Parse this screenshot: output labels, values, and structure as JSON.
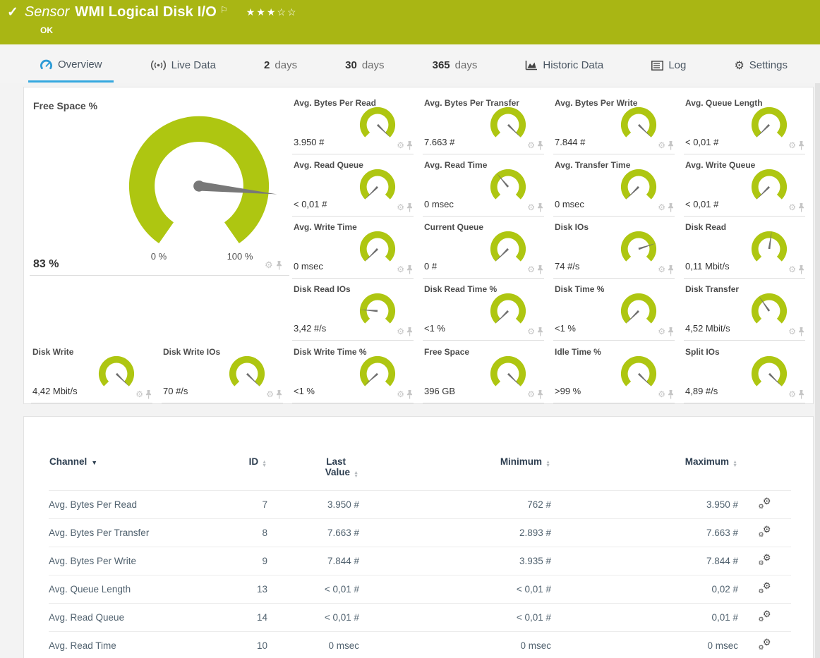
{
  "colors": {
    "header_green": "#a9b614",
    "gauge_green": "#aec611",
    "accent_blue": "#35a8df",
    "needle_gray": "#6f6f6f",
    "table_header_navy": "#2d3e50"
  },
  "header": {
    "check_icon": "✓",
    "sensor_label": "Sensor",
    "title": "WMI Logical Disk I/O",
    "flag_icon": "⚐",
    "stars": "★★★☆☆",
    "status": "OK"
  },
  "tabs": [
    {
      "label": "Overview",
      "icon": "gauge-icon",
      "active": true
    },
    {
      "label": "Live Data",
      "icon": "live-data-icon"
    },
    {
      "num": "2",
      "label": "days"
    },
    {
      "num": "30",
      "label": "days"
    },
    {
      "num": "365",
      "label": "days"
    },
    {
      "label": "Historic Data",
      "icon": "historic-data-icon"
    },
    {
      "label": "Log",
      "icon": "log-icon"
    },
    {
      "label": "Settings",
      "icon": "settings-icon"
    }
  ],
  "big_gauge": {
    "title": "Free Space %",
    "value": "83 %",
    "min_label": "0 %",
    "max_label": "100 %",
    "needle_deg": 96
  },
  "gauges": {
    "grid": [
      {
        "title": "Avg. Bytes Per Read",
        "value": "3.950 #",
        "needle_deg": 135
      },
      {
        "title": "Avg. Bytes Per Transfer",
        "value": "7.663 #",
        "needle_deg": 135
      },
      {
        "title": "Avg. Bytes Per Write",
        "value": "7.844 #",
        "needle_deg": 135
      },
      {
        "title": "Avg. Queue Length",
        "value": "< 0,01 #",
        "needle_deg": -135
      },
      {
        "title": "Avg. Read Queue",
        "value": "< 0,01 #",
        "needle_deg": -135
      },
      {
        "title": "Avg. Read Time",
        "value": "0 msec",
        "needle_deg": -40
      },
      {
        "title": "Avg. Transfer Time",
        "value": "0 msec",
        "needle_deg": -135
      },
      {
        "title": "Avg. Write Queue",
        "value": "< 0,01 #",
        "needle_deg": -135
      },
      {
        "title": "Avg. Write Time",
        "value": "0 msec",
        "needle_deg": -135
      },
      {
        "title": "Current Queue",
        "value": "0 #",
        "needle_deg": -135
      },
      {
        "title": "Disk IOs",
        "value": "74 #/s",
        "needle_deg": 72
      },
      {
        "title": "Disk Read",
        "value": "0,11 Mbit/s",
        "needle_deg": 8
      },
      {
        "title": "Disk Read IOs",
        "value": "3,42 #/s",
        "needle_deg": -86
      },
      {
        "title": "Disk Read Time %",
        "value": "<1 %",
        "needle_deg": -135
      },
      {
        "title": "Disk Time %",
        "value": "<1 %",
        "needle_deg": -135
      },
      {
        "title": "Disk Transfer",
        "value": "4,52 Mbit/s",
        "needle_deg": -35
      }
    ],
    "bottom": [
      {
        "title": "Disk Write",
        "value": "4,42 Mbit/s",
        "needle_deg": 135
      },
      {
        "title": "Disk Write IOs",
        "value": "70 #/s",
        "needle_deg": 135
      },
      {
        "title": "Disk Write Time %",
        "value": "<1 %",
        "needle_deg": -132
      },
      {
        "title": "Free Space",
        "value": "396 GB",
        "needle_deg": 135
      },
      {
        "title": "Idle Time %",
        "value": ">99 %",
        "needle_deg": 135
      },
      {
        "title": "Split IOs",
        "value": "4,89 #/s",
        "needle_deg": 135
      }
    ]
  },
  "table": {
    "headers": {
      "channel": "Channel",
      "id": "ID",
      "last_value_line1": "Last",
      "last_value_line2": "Value",
      "minimum": "Minimum",
      "maximum": "Maximum"
    },
    "rows": [
      {
        "channel": "Avg. Bytes Per Read",
        "id": "7",
        "last": "3.950 #",
        "min": "762 #",
        "max": "3.950 #"
      },
      {
        "channel": "Avg. Bytes Per Transfer",
        "id": "8",
        "last": "7.663 #",
        "min": "2.893 #",
        "max": "7.663 #"
      },
      {
        "channel": "Avg. Bytes Per Write",
        "id": "9",
        "last": "7.844 #",
        "min": "3.935 #",
        "max": "7.844 #"
      },
      {
        "channel": "Avg. Queue Length",
        "id": "13",
        "last": "< 0,01 #",
        "min": "< 0,01 #",
        "max": "0,02 #"
      },
      {
        "channel": "Avg. Read Queue",
        "id": "14",
        "last": "< 0,01 #",
        "min": "< 0,01 #",
        "max": "0,01 #"
      },
      {
        "channel": "Avg. Read Time",
        "id": "10",
        "last": "0 msec",
        "min": "0 msec",
        "max": "0 msec"
      }
    ]
  }
}
